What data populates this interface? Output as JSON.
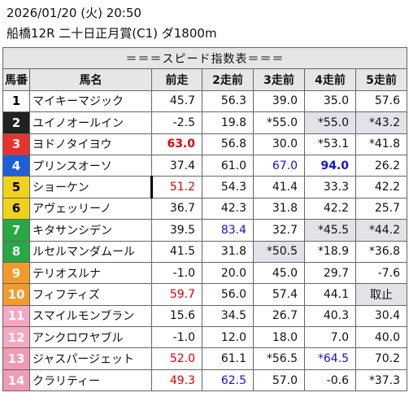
{
  "header": {
    "datetime": "2026/01/20 (火) 20:50",
    "race": "船橋12R 二十日正月賞(C1) ダ1800m"
  },
  "table": {
    "band_title": "＝＝＝スピード指数表＝＝＝",
    "columns": [
      "馬番",
      "馬名",
      "前走",
      "2走前",
      "3走前",
      "4走前",
      "5走前"
    ],
    "colors": {
      "gate_1": "#ffffff",
      "gate_2": "#222222",
      "gate_3": "#e8322c",
      "gate_4": "#1f5fd6",
      "gate_5": "#f0d21c",
      "gate_6": "#27a844",
      "gate_7": "#f39a2a",
      "gate_8": "#f6a8c0",
      "red_text": "#e00000",
      "blue_text": "#1212d8",
      "gray_cell": "#e2e2e8"
    },
    "rows": [
      {
        "num": "1",
        "name": "マイキーマジック",
        "v": [
          "45.7",
          "56.3",
          "39.0",
          "35.0",
          "57.6"
        ],
        "gate": "1"
      },
      {
        "num": "2",
        "name": "ユイノオールイン",
        "v": [
          "-2.5",
          "19.8",
          "*55.0",
          "*55.0",
          "*43.2"
        ],
        "gate": "2"
      },
      {
        "num": "3",
        "name": "ヨドノタイヨウ",
        "v": [
          "63.0",
          "56.8",
          "30.0",
          "*53.1",
          "*41.8"
        ],
        "gate": "3"
      },
      {
        "num": "4",
        "name": "プリンスオーソ",
        "v": [
          "37.4",
          "61.0",
          "67.0",
          "94.0",
          "26.2"
        ],
        "gate": "4"
      },
      {
        "num": "5",
        "name": "ショーケン",
        "v": [
          "51.2",
          "54.3",
          "41.4",
          "33.3",
          "42.2"
        ],
        "gate": "5"
      },
      {
        "num": "6",
        "name": "アヴェッリーノ",
        "v": [
          "36.7",
          "42.3",
          "31.8",
          "42.2",
          "25.7"
        ],
        "gate": "5"
      },
      {
        "num": "7",
        "name": "キタサンシデン",
        "v": [
          "39.5",
          "83.4",
          "32.7",
          "*45.5",
          "*44.2"
        ],
        "gate": "6"
      },
      {
        "num": "8",
        "name": "ルセルマンダムール",
        "v": [
          "41.5",
          "31.8",
          "*50.5",
          "*18.9",
          "*36.8"
        ],
        "gate": "6"
      },
      {
        "num": "9",
        "name": "テリオスルナ",
        "v": [
          "-1.0",
          "20.0",
          "45.0",
          "29.7",
          "-7.6"
        ],
        "gate": "7"
      },
      {
        "num": "10",
        "name": "フィフティズ",
        "v": [
          "59.7",
          "56.0",
          "57.4",
          "44.1",
          "取止"
        ],
        "gate": "7"
      },
      {
        "num": "11",
        "name": "スマイルモンブラン",
        "v": [
          "15.6",
          "34.5",
          "26.7",
          "40.3",
          "30.4"
        ],
        "gate": "8"
      },
      {
        "num": "12",
        "name": "アンクロワヤブル",
        "v": [
          "-1.0",
          "12.0",
          "18.0",
          "7.0",
          "40.0"
        ],
        "gate": "8"
      },
      {
        "num": "13",
        "name": "ジャスパージェット",
        "v": [
          "52.0",
          "61.1",
          "*56.5",
          "*64.5",
          "70.2"
        ],
        "gate": "8p"
      },
      {
        "num": "14",
        "name": "クラリティー",
        "v": [
          "49.3",
          "62.5",
          "57.0",
          "-0.6",
          "*37.3"
        ],
        "gate": "8p"
      }
    ]
  }
}
